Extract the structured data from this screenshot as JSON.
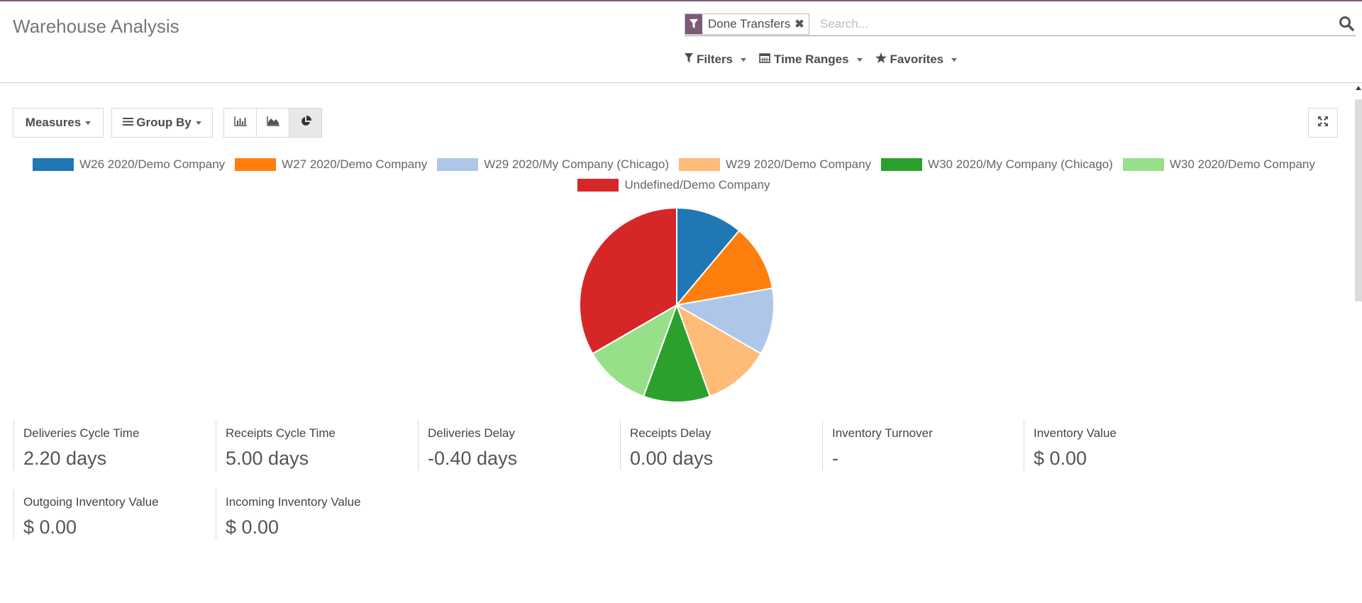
{
  "header": {
    "title": "Warehouse Analysis",
    "facet_label": "Done Transfers",
    "facet_close": "✖",
    "search_placeholder": "Search...",
    "filters_label": "Filters",
    "time_ranges_label": "Time Ranges",
    "favorites_label": "Favorites"
  },
  "toolbar": {
    "measures_label": "Measures",
    "group_by_label": "Group By",
    "active_view": "pie"
  },
  "chart_data": {
    "type": "pie",
    "labels": [
      "W26 2020/Demo Company",
      "W27 2020/Demo Company",
      "W29 2020/My Company (Chicago)",
      "W29 2020/Demo Company",
      "W30 2020/My Company (Chicago)",
      "W30 2020/Demo Company",
      "Undefined/Demo Company"
    ],
    "values": [
      1,
      1,
      1,
      1,
      1,
      1,
      3
    ],
    "colors": [
      "#1f77b4",
      "#ff7f0e",
      "#aec7e8",
      "#ffbb78",
      "#2ca02c",
      "#98df8a",
      "#d62728"
    ],
    "legend_position": "top"
  },
  "kpis": [
    {
      "label": "Deliveries Cycle Time",
      "value": "2.20 days"
    },
    {
      "label": "Receipts Cycle Time",
      "value": "5.00 days"
    },
    {
      "label": "Deliveries Delay",
      "value": "-0.40 days"
    },
    {
      "label": "Receipts Delay",
      "value": "0.00 days"
    },
    {
      "label": "Inventory Turnover",
      "value": "-"
    },
    {
      "label": "Inventory Value",
      "value": "$ 0.00"
    },
    {
      "label": "Outgoing Inventory Value",
      "value": "$ 0.00"
    },
    {
      "label": "Incoming Inventory Value",
      "value": "$ 0.00"
    }
  ],
  "colors": {
    "brand": "#7c5a78"
  }
}
